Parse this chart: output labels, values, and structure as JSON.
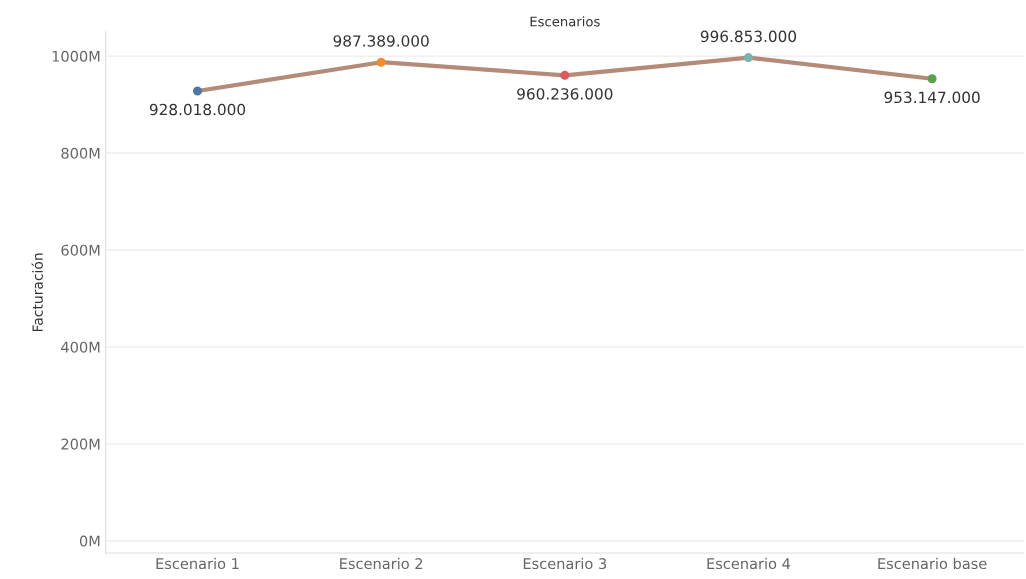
{
  "chart_data": {
    "type": "line",
    "title": "Escenarios",
    "ylabel": "Facturación",
    "categories": [
      "Escenario 1",
      "Escenario 2",
      "Escenario 3",
      "Escenario 4",
      "Escenario base"
    ],
    "values": [
      928018000,
      987389000,
      960236000,
      996853000,
      953147000
    ],
    "value_labels": [
      "928.018.000",
      "987.389.000",
      "960.236.000",
      "996.853.000",
      "953.147.000"
    ],
    "color": "#b48a78",
    "colors": [
      "#4e79a7",
      "#f28e2b",
      "#e15759",
      "#76b7b2",
      "#59a14f"
    ],
    "ylim": [
      -25000000,
      1050000000
    ],
    "yticks": [
      {
        "value": 0,
        "label": "0M"
      },
      {
        "value": 200000000,
        "label": "200M"
      },
      {
        "value": 400000000,
        "label": "400M"
      },
      {
        "value": 600000000,
        "label": "600M"
      },
      {
        "value": 800000000,
        "label": "800M"
      },
      {
        "value": 1000000000,
        "label": "1000M"
      }
    ],
    "grid": "y",
    "marker": "circle",
    "line_style": "solid"
  }
}
